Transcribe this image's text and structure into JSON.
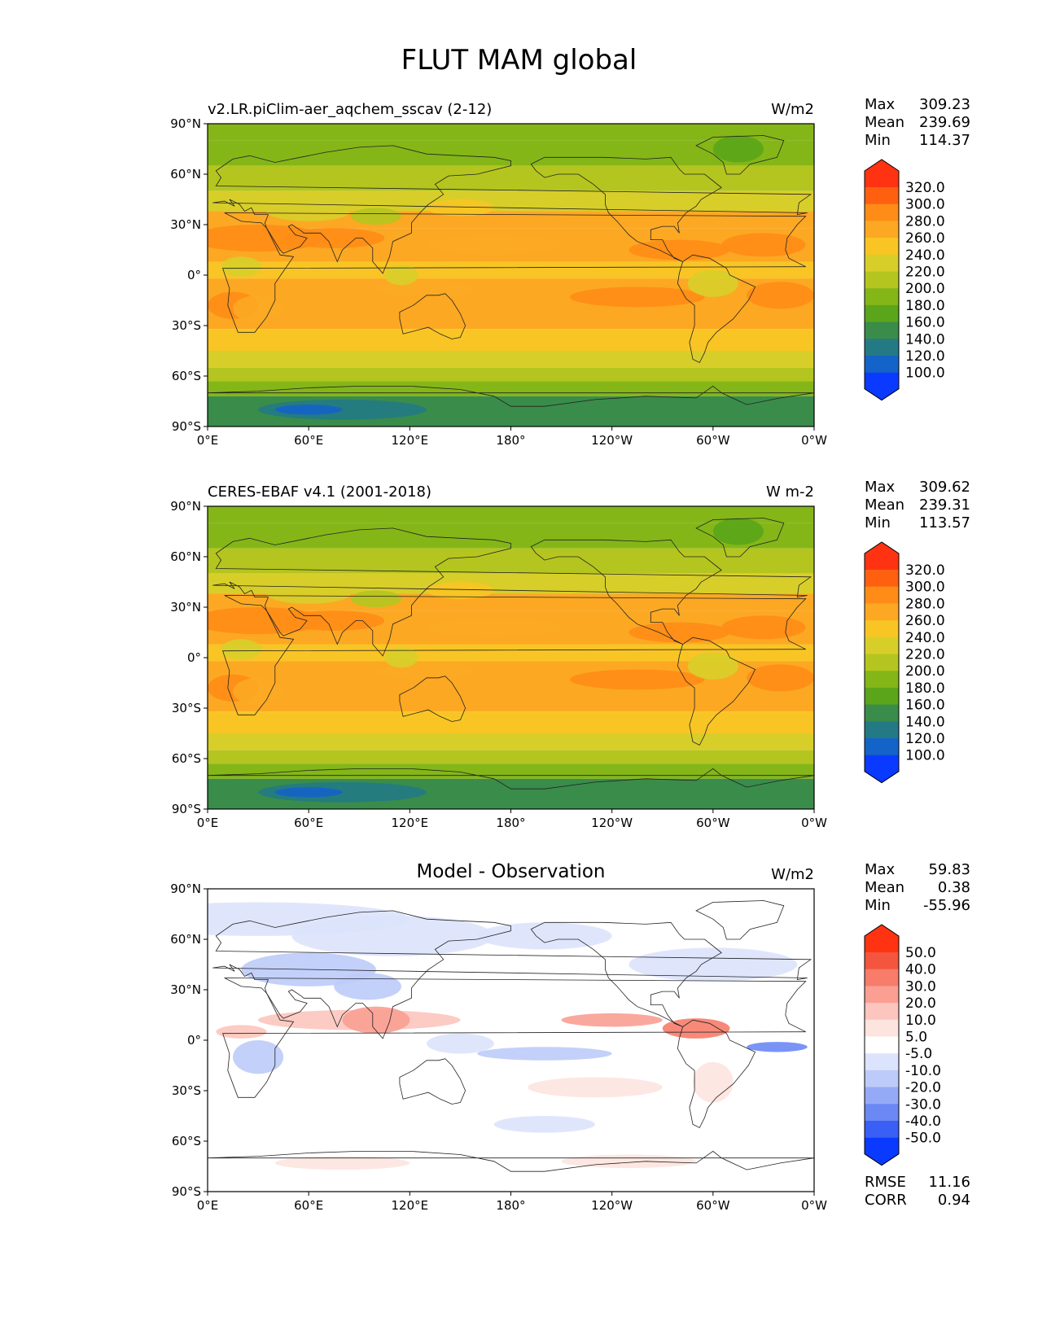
{
  "figure": {
    "title": "FLUT MAM global"
  },
  "axes": {
    "lat_ticks": [
      "90°N",
      "60°N",
      "30°N",
      "0°",
      "30°S",
      "60°S",
      "90°S"
    ],
    "lon_ticks": [
      "0°E",
      "60°E",
      "120°E",
      "180°",
      "120°W",
      "60°W",
      "0°W"
    ]
  },
  "chart_data": [
    {
      "type": "heatmap",
      "title": "v2.LR.piClim-aer_aqchem_sscav (2-12)",
      "units": "W/m2",
      "stats": {
        "max": "309.23",
        "mean": "239.69",
        "min": "114.37"
      },
      "stat_labels": {
        "max": "Max",
        "mean": "Mean",
        "min": "Min"
      },
      "colorbar": {
        "levels": [
          "320.0",
          "300.0",
          "280.0",
          "260.0",
          "240.0",
          "220.0",
          "200.0",
          "180.0",
          "160.0",
          "140.0",
          "120.0",
          "100.0"
        ],
        "colors": [
          "#ff3311",
          "#ff6010",
          "#ff8c16",
          "#fca823",
          "#f8c524",
          "#d8ce2a",
          "#b4c51f",
          "#84b618",
          "#5aa51a",
          "#3a8c4a",
          "#247a84",
          "#1463c8",
          "#0a3aff"
        ]
      },
      "ylim": [
        -90,
        90
      ],
      "xlim": [
        0,
        360
      ]
    },
    {
      "type": "heatmap",
      "title": "CERES-EBAF v4.1 (2001-2018)",
      "units": "W m-2",
      "stats": {
        "max": "309.62",
        "mean": "239.31",
        "min": "113.57"
      },
      "stat_labels": {
        "max": "Max",
        "mean": "Mean",
        "min": "Min"
      },
      "colorbar": {
        "levels": [
          "320.0",
          "300.0",
          "280.0",
          "260.0",
          "240.0",
          "220.0",
          "200.0",
          "180.0",
          "160.0",
          "140.0",
          "120.0",
          "100.0"
        ],
        "colors": [
          "#ff3311",
          "#ff6010",
          "#ff8c16",
          "#fca823",
          "#f8c524",
          "#d8ce2a",
          "#b4c51f",
          "#84b618",
          "#5aa51a",
          "#3a8c4a",
          "#247a84",
          "#1463c8",
          "#0a3aff"
        ]
      },
      "ylim": [
        -90,
        90
      ],
      "xlim": [
        0,
        360
      ]
    },
    {
      "type": "heatmap",
      "title": "Model - Observation",
      "units": "W/m2",
      "stats": {
        "max": "59.83",
        "mean": "0.38",
        "min": "-55.96",
        "rmse": "11.16",
        "corr": "0.94"
      },
      "stat_labels": {
        "max": "Max",
        "mean": "Mean",
        "min": "Min",
        "rmse": "RMSE",
        "corr": "CORR"
      },
      "colorbar": {
        "levels": [
          "50.0",
          "40.0",
          "30.0",
          "20.0",
          "10.0",
          "5.0",
          "-5.0",
          "-10.0",
          "-20.0",
          "-30.0",
          "-40.0",
          "-50.0"
        ],
        "colors": [
          "#ff3311",
          "#f4553e",
          "#f77c6a",
          "#fa9f92",
          "#fcc5bd",
          "#fde4df",
          "#ffffff",
          "#dce3fc",
          "#bccbfa",
          "#95aaf7",
          "#6b88f4",
          "#3a5ff5",
          "#0a3aff"
        ]
      },
      "ylim": [
        -90,
        90
      ],
      "xlim": [
        0,
        360
      ]
    }
  ]
}
